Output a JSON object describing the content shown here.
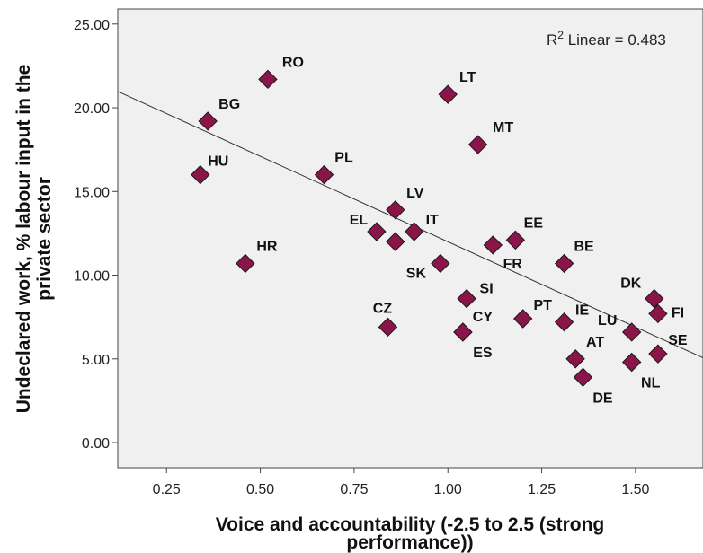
{
  "chart_data": {
    "type": "scatter",
    "xlabel_lines": [
      "Voice and accountability (-2.5 to 2.5 (strong",
      "performance))"
    ],
    "ylabel_lines": [
      "Undeclared work, % labour input in the",
      "private sector"
    ],
    "xlim": [
      0.12,
      1.68
    ],
    "ylim": [
      -1.5,
      25.9
    ],
    "x_ticks": [
      0.25,
      0.5,
      0.75,
      1.0,
      1.25,
      1.5
    ],
    "x_tick_labels": [
      "0.25",
      "0.50",
      "0.75",
      "1.00",
      "1.25",
      "1.50"
    ],
    "y_ticks": [
      0,
      5,
      10,
      15,
      20,
      25
    ],
    "y_tick_labels": [
      "0.00",
      "5.00",
      "10.00",
      "15.00",
      "20.00",
      "25.00"
    ],
    "fit_line": {
      "r2_prefix": "R",
      "r2_sup": "2",
      "r2_text": " Linear = 0.483",
      "intercept": 22.2,
      "slope": -10.2
    },
    "grid": false,
    "marker_color": "#8a1548",
    "plot_background": "#f0f0f0",
    "points": [
      {
        "label": "RO",
        "x": 0.52,
        "y": 21.7
      },
      {
        "label": "BG",
        "x": 0.36,
        "y": 19.2
      },
      {
        "label": "HU",
        "x": 0.34,
        "y": 16.0
      },
      {
        "label": "HR",
        "x": 0.46,
        "y": 10.7
      },
      {
        "label": "PL",
        "x": 0.67,
        "y": 16.0
      },
      {
        "label": "LT",
        "x": 1.0,
        "y": 20.8
      },
      {
        "label": "MT",
        "x": 1.08,
        "y": 17.8
      },
      {
        "label": "LV",
        "x": 0.86,
        "y": 13.9
      },
      {
        "label": "EL",
        "x": 0.81,
        "y": 12.6
      },
      {
        "label": "",
        "x": 0.86,
        "y": 12.0
      },
      {
        "label": "IT",
        "x": 0.91,
        "y": 12.6
      },
      {
        "label": "SK",
        "x": 0.98,
        "y": 10.7
      },
      {
        "label": "SI",
        "x": 1.05,
        "y": 8.6
      },
      {
        "label": "FR",
        "x": 1.12,
        "y": 11.8
      },
      {
        "label": "EE",
        "x": 1.18,
        "y": 12.1
      },
      {
        "label": "BE",
        "x": 1.31,
        "y": 10.7
      },
      {
        "label": "CY",
        "x": 1.04,
        "y": 6.6
      },
      {
        "label": "CZ",
        "x": 0.84,
        "y": 6.9
      },
      {
        "label": "ES",
        "x": 1.04,
        "y": 6.6
      },
      {
        "label": "PT",
        "x": 1.2,
        "y": 7.4
      },
      {
        "label": "IE",
        "x": 1.31,
        "y": 7.2
      },
      {
        "label": "LU",
        "x": 1.49,
        "y": 6.6
      },
      {
        "label": "DK",
        "x": 1.55,
        "y": 8.6
      },
      {
        "label": "FI",
        "x": 1.56,
        "y": 7.7
      },
      {
        "label": "SE",
        "x": 1.56,
        "y": 5.3
      },
      {
        "label": "AT",
        "x": 1.34,
        "y": 5.0
      },
      {
        "label": "DE",
        "x": 1.36,
        "y": 3.9
      },
      {
        "label": "NL",
        "x": 1.49,
        "y": 4.8
      }
    ]
  }
}
